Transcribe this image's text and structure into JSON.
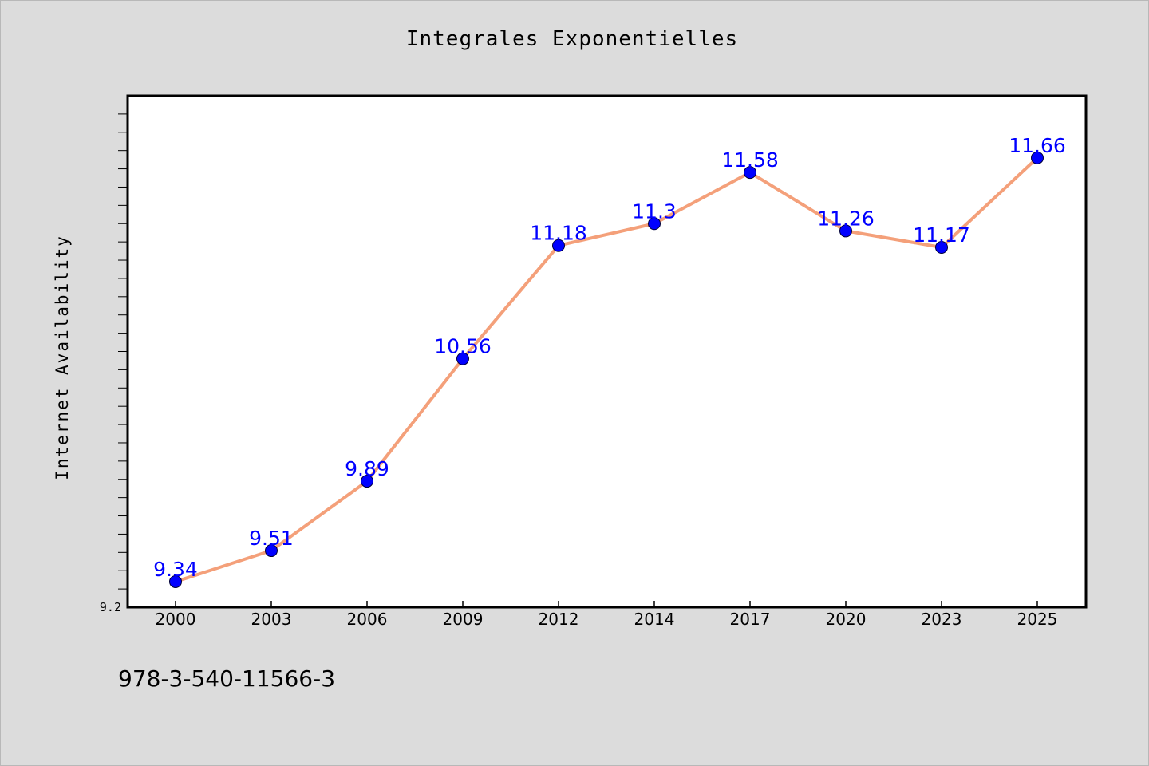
{
  "chart_data": {
    "type": "line",
    "title": "Integrales Exponentielles",
    "ylabel": "Internet Availability",
    "xlabel": "",
    "categories": [
      "2000",
      "2003",
      "2006",
      "2009",
      "2012",
      "2014",
      "2017",
      "2020",
      "2023",
      "2025"
    ],
    "series": [
      {
        "values": [
          9.34,
          9.51,
          9.89,
          10.56,
          11.18,
          11.3,
          11.58,
          11.26,
          11.17,
          11.66
        ],
        "color": "#f4a07a",
        "marker_color": "#0000ff"
      }
    ],
    "data_labels": [
      "9.34",
      "9.51",
      "9.89",
      "10.56",
      "11.18",
      "11.3",
      "11.58",
      "11.26",
      "11.17",
      "11.66"
    ],
    "y_tick_labels": [
      "9.2"
    ],
    "ylim": [
      9.2,
      12.0
    ],
    "grid": false,
    "legend": "none",
    "label_color": "#0000ff"
  },
  "footer_text": "978-3-540-11566-3"
}
